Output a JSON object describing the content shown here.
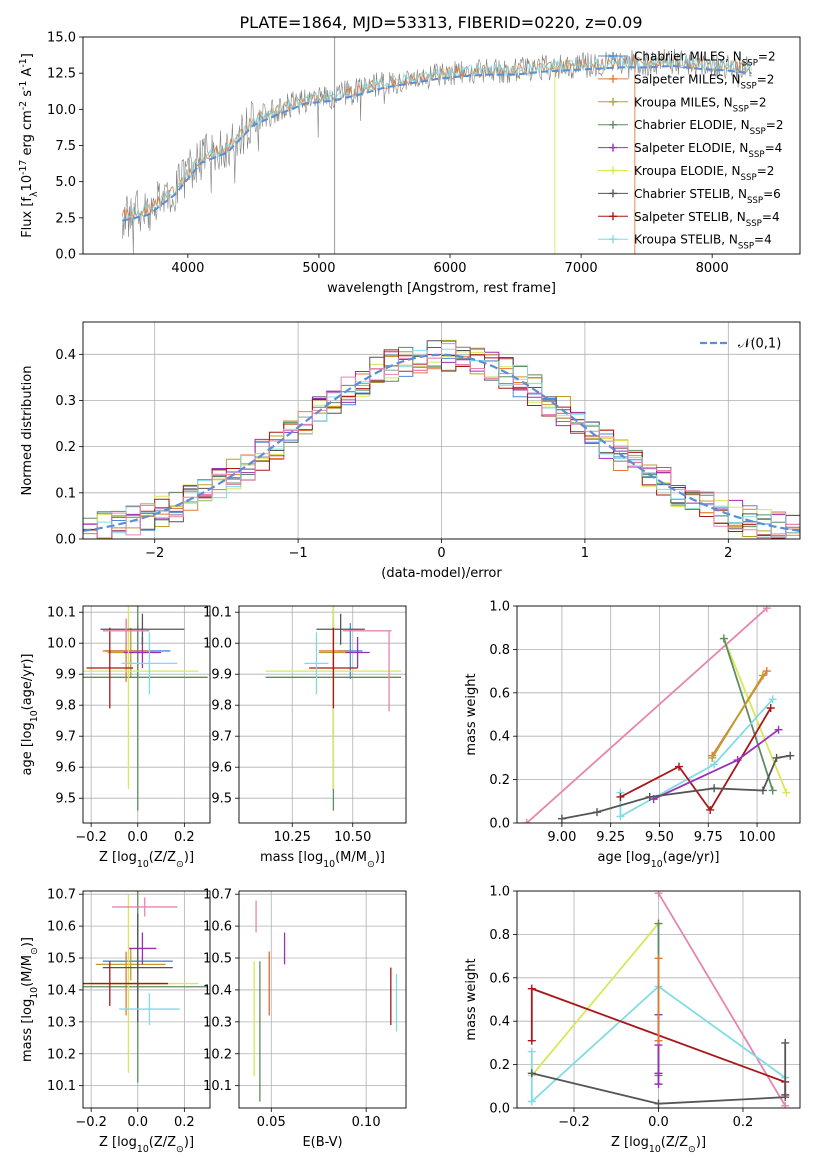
{
  "figure_title": "PLATE=1864, MJD=53313, FIBERID=0220, z=0.09",
  "colors": {
    "chabrier_miles": "#4c8bd3",
    "salpeter_miles": "#e07b39",
    "kroupa_miles": "#c29b2f",
    "chabrier_elodie": "#5e8c62",
    "salpeter_elodie": "#9b30b8",
    "kroupa_elodie": "#d8e858",
    "chabrier_stelib": "#555555",
    "salpeter_stelib": "#a81818",
    "kroupa_stelib": "#80dce4",
    "pink": "#e685b0",
    "normal": "#5a8fd6",
    "grid": "#b0b0b0",
    "spectrum": "#808080"
  },
  "chart_data": [
    {
      "id": "spectrum",
      "type": "line",
      "xlabel": "wavelength [Angstrom, rest frame]",
      "ylabel": "Flux [f$_\\lambda$10$^{-17}$ erg cm$^{-2}$ s$^{-1}$ A$^{-1}$]",
      "xlim": [
        3200,
        8670
      ],
      "ylim": [
        0,
        15
      ],
      "xticks": [
        4000,
        5000,
        6000,
        7000,
        8000
      ],
      "yticks": [
        0.0,
        2.5,
        5.0,
        7.5,
        10.0,
        12.5,
        15.0
      ],
      "grid": false,
      "legend_position": "right",
      "continuum": {
        "x": [
          3500,
          3700,
          3900,
          4100,
          4300,
          4500,
          4700,
          4900,
          5100,
          5300,
          5500,
          5700,
          5900,
          6100,
          6300,
          6500,
          6700,
          6900,
          7100,
          7300,
          7500,
          7700,
          7900,
          8100,
          8300
        ],
        "y": [
          2.6,
          3.0,
          4.4,
          6.6,
          7.3,
          9.2,
          10.0,
          10.7,
          10.9,
          11.3,
          11.8,
          12.1,
          12.4,
          12.6,
          12.7,
          12.7,
          12.9,
          13.0,
          13.1,
          13.2,
          13.2,
          13.3,
          13.1,
          13.0,
          12.8
        ]
      },
      "legend": [
        {
          "label": "Chabrier MILES, N$_{SSP}$=2",
          "color": "chabrier_miles",
          "marker": "+"
        },
        {
          "label": "Salpeter MILES, N$_{SSP}$=2",
          "color": "salpeter_miles",
          "marker": "+"
        },
        {
          "label": "Kroupa MILES, N$_{SSP}$=2",
          "color": "kroupa_miles",
          "marker": "+"
        },
        {
          "label": "Chabrier ELODIE, N$_{SSP}$=2",
          "color": "chabrier_elodie",
          "marker": "+"
        },
        {
          "label": "Salpeter ELODIE, N$_{SSP}$=4",
          "color": "salpeter_elodie",
          "marker": "+"
        },
        {
          "label": "Kroupa ELODIE, N$_{SSP}$=2",
          "color": "kroupa_elodie",
          "marker": "+"
        },
        {
          "label": "Chabrier STELIB, N$_{SSP}$=6",
          "color": "chabrier_stelib",
          "marker": "+"
        },
        {
          "label": "Salpeter STELIB, N$_{SSP}$=4",
          "color": "salpeter_stelib",
          "marker": "+"
        },
        {
          "label": "Kroupa STELIB, N$_{SSP}$=4",
          "color": "kroupa_stelib",
          "marker": "+"
        }
      ]
    },
    {
      "id": "residual_hist",
      "type": "histogram",
      "xlabel": "(data-model)/error",
      "ylabel": "Normed distribution",
      "xlim": [
        -2.5,
        2.5
      ],
      "ylim": [
        0,
        0.47
      ],
      "xticks": [
        -2,
        -1,
        0,
        1,
        2
      ],
      "xticklabels": [
        "−2",
        "−1",
        "0",
        "1",
        "2"
      ],
      "yticks": [
        0.0,
        0.1,
        0.2,
        0.3,
        0.4
      ],
      "grid": true,
      "bin_width": 0.1,
      "legend": [
        {
          "label": "$\\mathcal{N}(0,1)$",
          "color": "normal",
          "style": "dashed"
        }
      ],
      "series_colors": [
        "chabrier_miles",
        "salpeter_miles",
        "kroupa_miles",
        "chabrier_elodie",
        "salpeter_elodie",
        "kroupa_elodie",
        "chabrier_stelib",
        "salpeter_stelib",
        "kroupa_stelib",
        "pink"
      ]
    },
    {
      "id": "z_vs_age",
      "type": "scatter",
      "xlabel": "Z [log$_{10}$(Z/Z$_\\odot$)]",
      "ylabel": "age  [log$_{10}$(age/yr)]",
      "xlim": [
        -0.235,
        0.31
      ],
      "ylim": [
        9.42,
        10.12
      ],
      "xticks": [
        -0.2,
        0.0,
        0.2
      ],
      "xticklabels": [
        "−0.2",
        "0.0",
        "0.2"
      ],
      "yticks": [
        9.5,
        9.6,
        9.7,
        9.8,
        9.9,
        10.0,
        10.1
      ],
      "grid": true,
      "points": [
        {
          "color": "chabrier_miles",
          "x": 0.0,
          "y": 9.975,
          "xerr": 0.14,
          "yerr": 0.09
        },
        {
          "color": "salpeter_miles",
          "x": -0.05,
          "y": 9.975,
          "xerr": 0.1,
          "yerr": 0.1
        },
        {
          "color": "kroupa_miles",
          "x": -0.03,
          "y": 9.97,
          "xerr": 0.1,
          "yerr": 0.08
        },
        {
          "color": "chabrier_elodie",
          "x": 0.0,
          "y": 9.89,
          "xerr": 0.3,
          "yerr": 0.43
        },
        {
          "color": "salpeter_elodie",
          "x": 0.02,
          "y": 9.97,
          "xerr": 0.08,
          "yerr": 0.05
        },
        {
          "color": "kroupa_elodie",
          "x": -0.04,
          "y": 9.91,
          "xerr": 0.3,
          "yerr": 0.38
        },
        {
          "color": "chabrier_stelib",
          "x": 0.02,
          "y": 10.045,
          "xerr": 0.18,
          "yerr": 0.05
        },
        {
          "color": "salpeter_stelib",
          "x": -0.12,
          "y": 9.92,
          "xerr": 0.1,
          "yerr": 0.13
        },
        {
          "color": "kroupa_stelib",
          "x": 0.05,
          "y": 9.935,
          "xerr": 0.12,
          "yerr": 0.1
        },
        {
          "color": "pink",
          "x": -0.05,
          "y": 10.04,
          "xerr": 0.1,
          "yerr": 0.04
        }
      ]
    },
    {
      "id": "mass_vs_age",
      "type": "scatter",
      "xlabel": "mass [log$_{10}$(M/M$_\\odot$)]",
      "ylabel": "",
      "xlim": [
        10.03,
        10.72
      ],
      "ylim": [
        9.42,
        10.12
      ],
      "xticks": [
        10.25,
        10.5
      ],
      "xticklabels": [
        "10.25",
        "10.50"
      ],
      "yticks": [
        9.5,
        9.6,
        9.7,
        9.8,
        9.9,
        10.0,
        10.1
      ],
      "grid": true,
      "points": [
        {
          "color": "chabrier_miles",
          "x": 10.49,
          "y": 9.975,
          "xerr": 0.05,
          "yerr": 0.09
        },
        {
          "color": "salpeter_miles",
          "x": 10.42,
          "y": 9.975,
          "xerr": 0.06,
          "yerr": 0.1
        },
        {
          "color": "kroupa_miles",
          "x": 10.42,
          "y": 9.97,
          "xerr": 0.06,
          "yerr": 0.08
        },
        {
          "color": "chabrier_elodie",
          "x": 10.42,
          "y": 9.89,
          "xerr": 0.28,
          "yerr": 0.43
        },
        {
          "color": "salpeter_elodie",
          "x": 10.52,
          "y": 9.97,
          "xerr": 0.05,
          "yerr": 0.05
        },
        {
          "color": "kroupa_elodie",
          "x": 10.42,
          "y": 9.91,
          "xerr": 0.28,
          "yerr": 0.38
        },
        {
          "color": "chabrier_stelib",
          "x": 10.45,
          "y": 10.045,
          "xerr": 0.1,
          "yerr": 0.05
        },
        {
          "color": "salpeter_stelib",
          "x": 10.42,
          "y": 9.92,
          "xerr": 0.1,
          "yerr": 0.13
        },
        {
          "color": "kroupa_stelib",
          "x": 10.35,
          "y": 9.935,
          "xerr": 0.05,
          "yerr": 0.1
        },
        {
          "color": "pink",
          "x": 10.65,
          "y": 9.91,
          "xerr": 0.0,
          "yerr": 0.13
        },
        {
          "color": "pink",
          "x": 10.56,
          "y": 10.04,
          "xerr": 0.1,
          "yerr": 0.0
        }
      ]
    },
    {
      "id": "age_weights",
      "type": "line",
      "xlabel": "age  [log$_{10}$(age/yr)]",
      "ylabel": "mass weight",
      "xlim": [
        8.77,
        10.22
      ],
      "ylim": [
        0,
        1.0
      ],
      "xticks": [
        9.0,
        9.25,
        9.5,
        9.75,
        10.0
      ],
      "xticklabels": [
        "9.00",
        "9.25",
        "9.50",
        "9.75",
        "10.00"
      ],
      "yticks": [
        0.0,
        0.2,
        0.4,
        0.6,
        0.8,
        1.0
      ],
      "grid": true,
      "series": [
        {
          "color": "pink",
          "x": [
            8.82,
            10.05
          ],
          "y": [
            0.0,
            0.99
          ]
        },
        {
          "color": "kroupa_elodie",
          "x": [
            9.83,
            10.15
          ],
          "y": [
            0.85,
            0.14
          ]
        },
        {
          "color": "chabrier_elodie",
          "x": [
            9.83,
            10.08
          ],
          "y": [
            0.85,
            0.15
          ]
        },
        {
          "color": "salpeter_miles",
          "x": [
            9.77,
            10.05
          ],
          "y": [
            0.31,
            0.7
          ]
        },
        {
          "color": "kroupa_miles",
          "x": [
            9.77,
            10.03
          ],
          "y": [
            0.3,
            0.68
          ]
        },
        {
          "color": "kroupa_stelib",
          "x": [
            9.3,
            9.3,
            9.78,
            10.08
          ],
          "y": [
            0.14,
            0.03,
            0.27,
            0.57
          ]
        },
        {
          "color": "salpeter_stelib",
          "x": [
            9.3,
            9.6,
            9.76,
            10.07
          ],
          "y": [
            0.12,
            0.26,
            0.06,
            0.53
          ]
        },
        {
          "color": "salpeter_elodie",
          "x": [
            9.47,
            9.9,
            10.11
          ],
          "y": [
            0.11,
            0.29,
            0.43
          ]
        },
        {
          "color": "chabrier_stelib",
          "x": [
            9.0,
            9.18,
            9.45,
            9.78,
            10.03,
            10.1,
            10.17
          ],
          "y": [
            0.02,
            0.05,
            0.12,
            0.16,
            0.15,
            0.3,
            0.31
          ]
        }
      ]
    },
    {
      "id": "z_vs_mass",
      "type": "scatter",
      "xlabel": "Z [log$_{10}$(Z/Z$_\\odot$)]",
      "ylabel": "mass [log$_{10}$(M/M$_\\odot$)]",
      "xlim": [
        -0.235,
        0.31
      ],
      "ylim": [
        10.03,
        10.71
      ],
      "xticks": [
        -0.2,
        0.0,
        0.2
      ],
      "xticklabels": [
        "−0.2",
        "0.0",
        "0.2"
      ],
      "yticks": [
        10.1,
        10.2,
        10.3,
        10.4,
        10.5,
        10.6,
        10.7
      ],
      "grid": true,
      "points": [
        {
          "color": "chabrier_miles",
          "x": 0.0,
          "y": 10.49,
          "xerr": 0.15,
          "yerr": 0.04
        },
        {
          "color": "salpeter_miles",
          "x": -0.05,
          "y": 10.42,
          "xerr": 0.15,
          "yerr": 0.1
        },
        {
          "color": "kroupa_miles",
          "x": -0.03,
          "y": 10.48,
          "xerr": 0.15,
          "yerr": 0.05
        },
        {
          "color": "chabrier_elodie",
          "x": 0.0,
          "y": 10.41,
          "xerr": 0.3,
          "yerr": 0.3
        },
        {
          "color": "salpeter_elodie",
          "x": 0.02,
          "y": 10.53,
          "xerr": 0.06,
          "yerr": 0.05
        },
        {
          "color": "kroupa_elodie",
          "x": -0.04,
          "y": 10.42,
          "xerr": 0.3,
          "yerr": 0.28
        },
        {
          "color": "chabrier_stelib",
          "x": 0.0,
          "y": 10.47,
          "xerr": 0.15,
          "yerr": 0.17
        },
        {
          "color": "salpeter_stelib",
          "x": -0.12,
          "y": 10.42,
          "xerr": 0.25,
          "yerr": 0.07
        },
        {
          "color": "kroupa_stelib",
          "x": 0.05,
          "y": 10.34,
          "xerr": 0.13,
          "yerr": 0.05
        },
        {
          "color": "pink",
          "x": 0.03,
          "y": 10.66,
          "xerr": 0.14,
          "yerr": 0.03
        }
      ]
    },
    {
      "id": "ebv_vs_mass",
      "type": "scatter",
      "xlabel": "E(B-V)",
      "ylabel": "",
      "xlim": [
        0.033,
        0.121
      ],
      "ylim": [
        10.03,
        10.71
      ],
      "xticks": [
        0.05,
        0.1
      ],
      "xticklabels": [
        "0.05",
        "0.10"
      ],
      "yticks": [
        10.1,
        10.2,
        10.3,
        10.4,
        10.5,
        10.6,
        10.7
      ],
      "grid": true,
      "points": [
        {
          "color": "chabrier_miles",
          "x": 0.049,
          "y": 10.42,
          "xerr": 0,
          "yerr": 0.1
        },
        {
          "color": "salpeter_miles",
          "x": 0.049,
          "y": 10.42,
          "xerr": 0,
          "yerr": 0.1
        },
        {
          "color": "kroupa_elodie",
          "x": 0.041,
          "y": 10.31,
          "xerr": 0,
          "yerr": 0.18
        },
        {
          "color": "chabrier_elodie",
          "x": 0.044,
          "y": 10.27,
          "xerr": 0,
          "yerr": 0.22
        },
        {
          "color": "pink",
          "x": 0.042,
          "y": 10.63,
          "xerr": 0,
          "yerr": 0.05
        },
        {
          "color": "salpeter_elodie",
          "x": 0.057,
          "y": 10.53,
          "xerr": 0,
          "yerr": 0.05
        },
        {
          "color": "salpeter_stelib",
          "x": 0.113,
          "y": 10.38,
          "xerr": 0,
          "yerr": 0.09
        },
        {
          "color": "kroupa_stelib",
          "x": 0.116,
          "y": 10.36,
          "xerr": 0,
          "yerr": 0.09
        }
      ]
    },
    {
      "id": "z_weights",
      "type": "line",
      "xlabel": "Z [log$_{10}$(Z/Z$_\\odot$)]",
      "ylabel": "mass weight",
      "xlim": [
        -0.335,
        0.335
      ],
      "ylim": [
        0,
        1.0
      ],
      "xticks": [
        -0.2,
        0.0,
        0.2
      ],
      "xticklabels": [
        "−0.2",
        "0.0",
        "0.2"
      ],
      "yticks": [
        0.0,
        0.2,
        0.4,
        0.6,
        0.8,
        1.0
      ],
      "grid": true,
      "series": [
        {
          "color": "pink",
          "x": [
            0.0,
            0.3
          ],
          "y": [
            0.99,
            0.01
          ]
        },
        {
          "color": "kroupa_elodie",
          "x": [
            -0.3,
            0.0
          ],
          "y": [
            0.15,
            0.85
          ]
        },
        {
          "color": "chabrier_elodie",
          "x": [
            0.0,
            0.0
          ],
          "y": [
            0.15,
            0.85
          ]
        },
        {
          "color": "kroupa_stelib",
          "x": [
            -0.3,
            -0.3,
            0.0,
            0.3
          ],
          "y": [
            0.26,
            0.03,
            0.56,
            0.14
          ]
        },
        {
          "color": "salpeter_stelib",
          "x": [
            -0.3,
            -0.3,
            0.3,
            0.3
          ],
          "y": [
            0.31,
            0.55,
            0.12,
            0.06
          ]
        },
        {
          "color": "salpeter_elodie",
          "x": [
            0.0,
            0.0,
            0.0,
            0.0
          ],
          "y": [
            0.11,
            0.16,
            0.29,
            0.43
          ]
        },
        {
          "color": "chabrier_stelib",
          "x": [
            -0.3,
            0.0,
            0.3,
            0.3
          ],
          "y": [
            0.16,
            0.02,
            0.05,
            0.3
          ]
        },
        {
          "color": "salpeter_miles",
          "x": [
            0.0,
            0.0
          ],
          "y": [
            0.31,
            0.69
          ]
        }
      ]
    }
  ]
}
